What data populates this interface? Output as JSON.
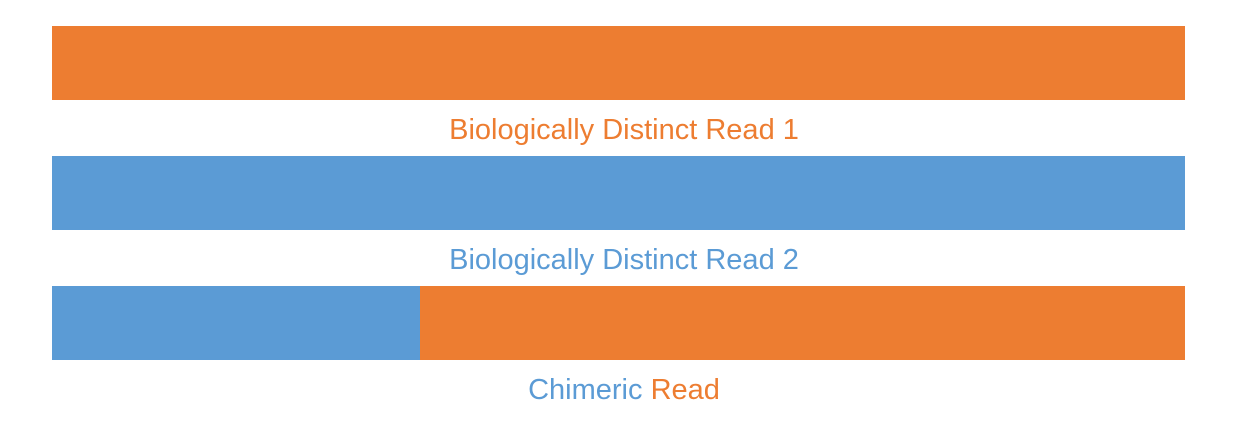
{
  "colors": {
    "orange": "#ED7D31",
    "blue": "#5B9BD5"
  },
  "reads": [
    {
      "label": "Biologically Distinct Read 1",
      "color": "orange"
    },
    {
      "label": "Biologically Distinct Read 2",
      "color": "blue"
    }
  ],
  "chimeric": {
    "label_part_1": "Chimeric ",
    "label_part_2": "Read",
    "segments": [
      {
        "color": "blue",
        "fraction": 0.325
      },
      {
        "color": "orange",
        "fraction": 0.675
      }
    ]
  }
}
